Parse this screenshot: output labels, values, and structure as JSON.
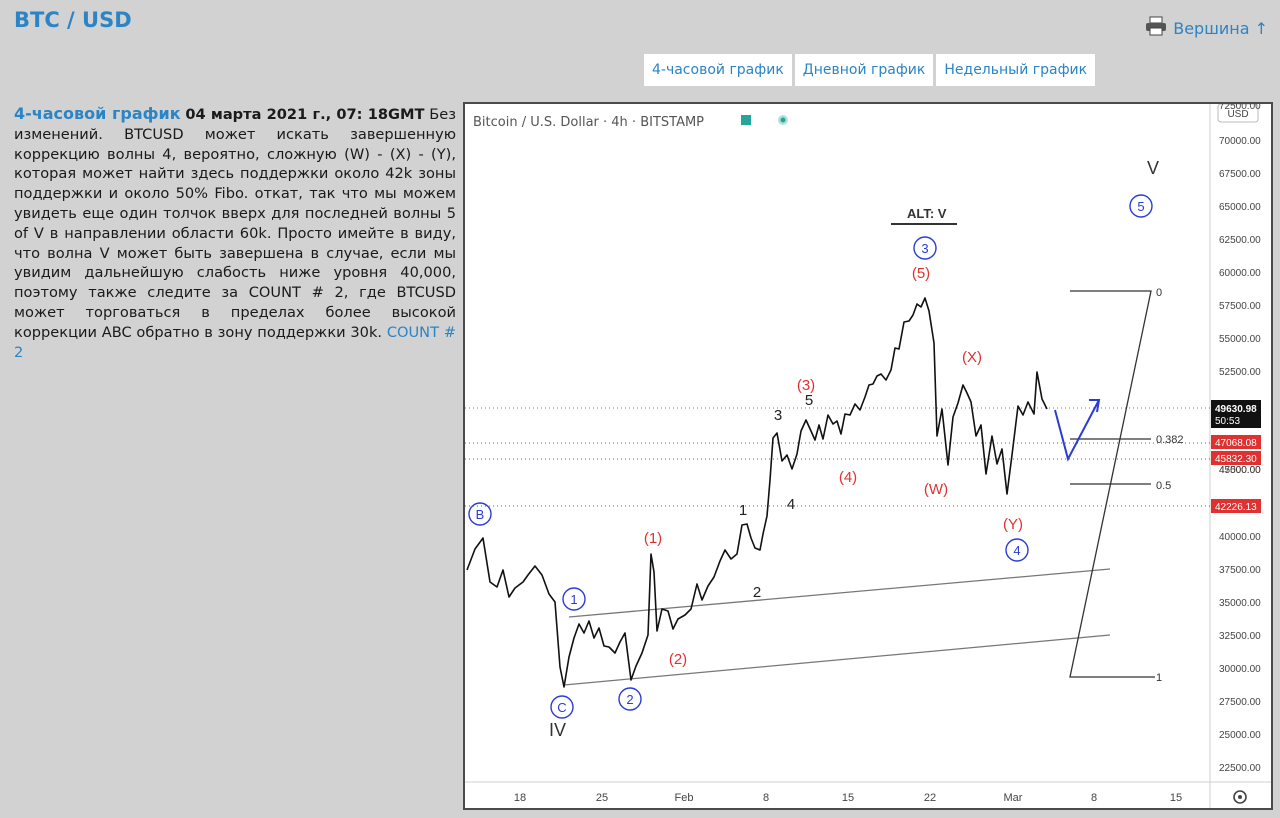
{
  "page": {
    "title": "BTC / USD",
    "top_link": "Вершина ↑",
    "tabs": [
      "4-часовой график",
      "Дневной график",
      "Недельный график"
    ]
  },
  "article": {
    "lead": "4-часовой график",
    "date": "04 марта 2021 г., 07: 18GMT",
    "body": "Без изменений. BTCUSD может искать завершенную коррекцию волны 4, вероятно, сложную (W) - (X) - (Y), которая может найти здесь поддержки около 42k зоны поддержки и около 50% Fibo. откат, так что мы можем увидеть еще один толчок вверх для последней волны 5 of V в направлении области 60k. Просто имейте в виду, что волна V может быть завершена в случае, если мы увидим дальнейшую слабость ниже уровня 40,000, поэтому также следите за COUNT # 2, где BTCUSD может торговаться в пределах более высокой коррекции ABC обратно в зону поддержки 30k.",
    "link": "COUNT # 2"
  },
  "chart": {
    "header": "Bitcoin / U.S. Dollar · 4h · BITSTAMP",
    "currency": "USD",
    "y_ticks": [
      "72500.00",
      "70000.00",
      "67500.00",
      "65000.00",
      "62500.00",
      "60000.00",
      "57500.00",
      "55000.00",
      "52500.00",
      "47500.00",
      "45000.00",
      "40000.00",
      "37500.00",
      "35000.00",
      "32500.00",
      "30000.00",
      "27500.00",
      "25000.00",
      "22500.00"
    ],
    "x_ticks": [
      "18",
      "25",
      "Feb",
      "8",
      "15",
      "22",
      "Mar",
      "8",
      "15"
    ],
    "price_tags": [
      {
        "label": "49630.98",
        "sub": "50:53",
        "color": "#111111"
      },
      {
        "label": "47068.08",
        "color": "#e03131"
      },
      {
        "label": "45832.30",
        "color": "#e03131"
      },
      {
        "label": "42226.13",
        "color": "#e03131"
      }
    ],
    "fib_labels": [
      "0",
      "0.382",
      "0.5",
      "1"
    ],
    "wave_labels": {
      "V": "V",
      "IV": "IV",
      "alt": "ALT: V",
      "circled_blue": [
        "B",
        "C",
        "1",
        "2",
        "3",
        "4",
        "5"
      ],
      "red": [
        "(1)",
        "(2)",
        "(3)",
        "(4)",
        "(5)",
        "(X)",
        "(W)",
        "(Y)"
      ],
      "black": [
        "1",
        "2",
        "3",
        "4",
        "5"
      ]
    },
    "colors": {
      "blue_wave": "#2b3bd6",
      "red_wave": "#e03131",
      "candle": "#111111",
      "fib": "#333333"
    }
  }
}
